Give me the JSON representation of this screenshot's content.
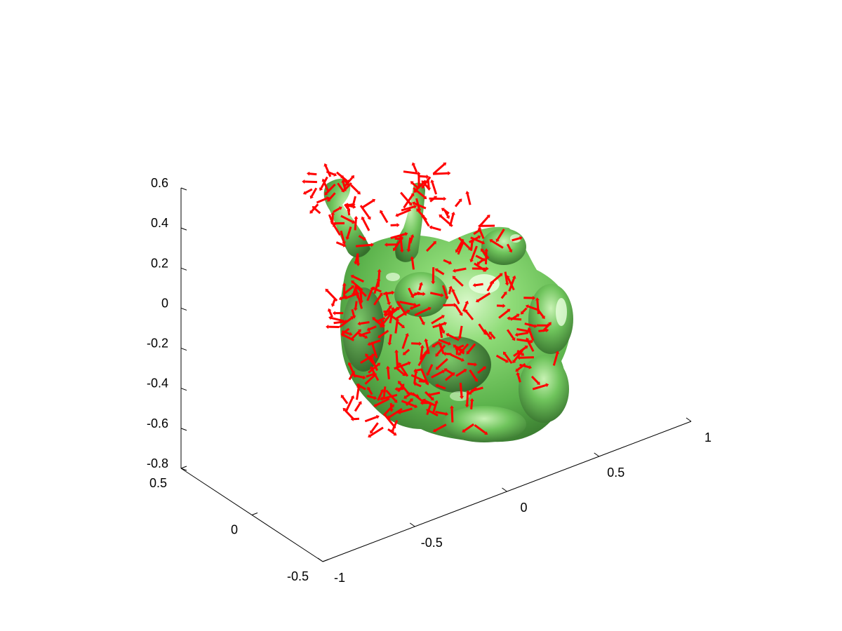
{
  "chart_data": {
    "type": "isosurface-quiver-3d",
    "title": "",
    "xlabel": "",
    "ylabel": "",
    "zlabel": "",
    "grid": false,
    "legend": "none",
    "surface_color": "#66cc55",
    "surface_highlight": "#c9f5b8",
    "surface_shadow": "#2f6f26",
    "arrow_color": "#ff0000",
    "x_axis": {
      "range": [
        -1,
        1
      ],
      "ticks": [
        -1,
        -0.5,
        0,
        0.5,
        1
      ],
      "tick_labels": [
        "-1",
        "-0.5",
        "0",
        "0.5",
        "1"
      ]
    },
    "y_axis": {
      "range": [
        -0.5,
        0.5
      ],
      "ticks": [
        -0.5,
        0,
        0.5
      ],
      "tick_labels": [
        "-0.5",
        "0",
        "0.5"
      ]
    },
    "z_axis": {
      "range": [
        -0.8,
        0.6
      ],
      "ticks": [
        -0.8,
        -0.6,
        -0.4,
        -0.2,
        0,
        0.2,
        0.4,
        0.6
      ],
      "tick_labels": [
        "-0.8",
        "-0.6",
        "-0.4",
        "-0.2",
        "0",
        "0.2",
        "0.4",
        "0.6"
      ]
    }
  }
}
